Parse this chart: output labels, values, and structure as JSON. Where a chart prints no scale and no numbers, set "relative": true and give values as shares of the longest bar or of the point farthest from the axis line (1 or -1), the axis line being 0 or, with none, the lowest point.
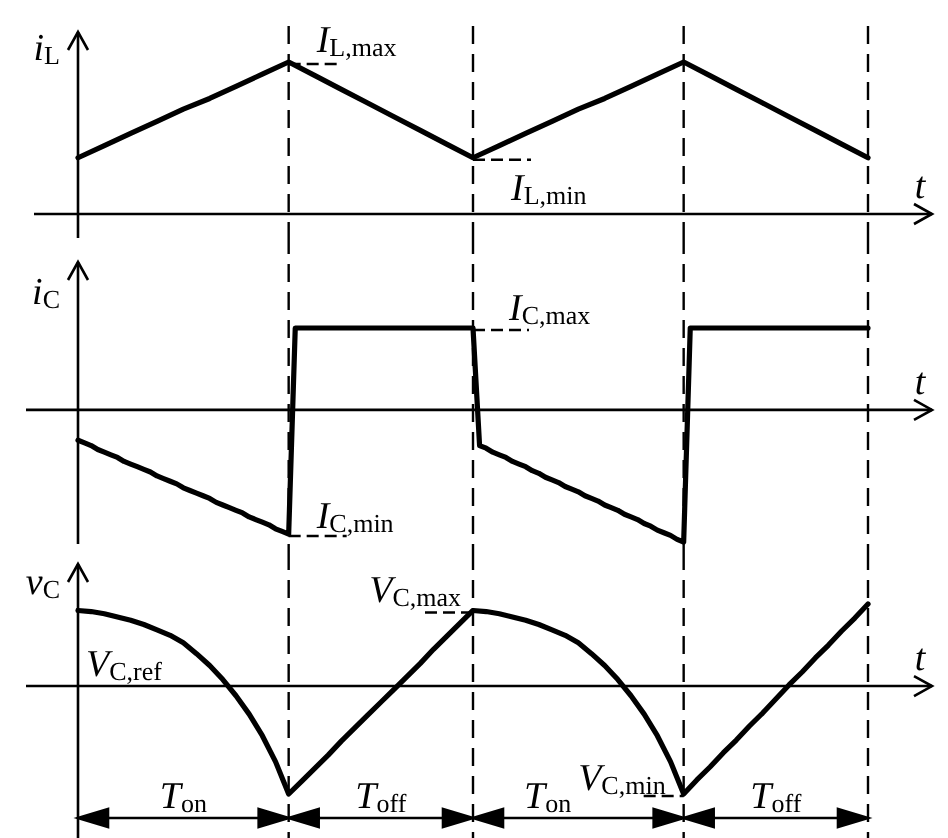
{
  "chart_data": [
    {
      "type": "line",
      "xlabel": "t",
      "ylabel": "i$_{L}$",
      "relative": true,
      "grid": "x",
      "categories": [
        null,
        null,
        null,
        null,
        null,
        null,
        null,
        null,
        null,
        null,
        null,
        null,
        null,
        null,
        null,
        null,
        null,
        null,
        null,
        null,
        null,
        null,
        null,
        null,
        null,
        null,
        null,
        null,
        null,
        null,
        null
      ],
      "series": [
        {
          "color": "#000000",
          "values": [
            0.37,
            0.45,
            0.53,
            0.61,
            0.69,
            0.76,
            0.84,
            0.92,
            1,
            0.91,
            0.82,
            0.73,
            0.64,
            0.55,
            0.46,
            0.37,
            0.45,
            0.53,
            0.61,
            0.69,
            0.76,
            0.84,
            0.92,
            1,
            0.91,
            0.82,
            0.73,
            0.64,
            0.55,
            0.46,
            0.37
          ]
        }
      ],
      "annotations": [
        "I$_{L,max}$",
        "I$_{L,min}$"
      ]
    },
    {
      "type": "line",
      "xlabel": "t",
      "ylabel": "i$_{C}$",
      "relative": true,
      "grid": "x",
      "categories": [
        null,
        null,
        null,
        null,
        null,
        null,
        null,
        null,
        null,
        null,
        null,
        null,
        null,
        null,
        null,
        null,
        null,
        null,
        null,
        null,
        null,
        null,
        null,
        null,
        null,
        null,
        null,
        null,
        null,
        null,
        null,
        null,
        null,
        null,
        null,
        null,
        null,
        null,
        null,
        null,
        null,
        null,
        null,
        null,
        null,
        null,
        null,
        null,
        null,
        null,
        null,
        null,
        null,
        null,
        null,
        null,
        null,
        null,
        null,
        null,
        null,
        null,
        null,
        null,
        null,
        null,
        null,
        null,
        null,
        null,
        null,
        null,
        null,
        null,
        null,
        null,
        null,
        null,
        null,
        null,
        null,
        null,
        null,
        null,
        null,
        null,
        null,
        null,
        null,
        null,
        null,
        null,
        null,
        null,
        null,
        null,
        null,
        null,
        null,
        null,
        null,
        null,
        null,
        null,
        null,
        null,
        null,
        null,
        null,
        null,
        null,
        null,
        null,
        null,
        null,
        null,
        null,
        null,
        null,
        null,
        null
      ],
      "series": [
        {
          "color": "#000000",
          "values": [
            -0.23,
            -0.25,
            -0.27,
            -0.3,
            -0.32,
            -0.34,
            -0.36,
            -0.39,
            -0.41,
            -0.43,
            -0.45,
            -0.47,
            -0.5,
            -0.52,
            -0.54,
            -0.56,
            -0.59,
            -0.61,
            -0.63,
            -0.65,
            -0.67,
            -0.7,
            -0.72,
            -0.74,
            -0.76,
            -0.78,
            -0.81,
            -0.83,
            -0.85,
            -0.87,
            -0.9,
            -0.92,
            -0.94,
            0.62,
            0.62,
            0.62,
            0.62,
            0.62,
            0.62,
            0.62,
            0.62,
            0.62,
            0.62,
            0.62,
            0.62,
            0.62,
            0.62,
            0.62,
            0.62,
            0.62,
            0.62,
            0.62,
            0.62,
            0.62,
            0.62,
            0.62,
            0.62,
            0.62,
            0.62,
            0.62,
            0.62,
            -0.27,
            -0.29,
            -0.32,
            -0.34,
            -0.36,
            -0.39,
            -0.41,
            -0.43,
            -0.46,
            -0.48,
            -0.51,
            -0.53,
            -0.55,
            -0.58,
            -0.6,
            -0.62,
            -0.65,
            -0.67,
            -0.69,
            -0.72,
            -0.74,
            -0.76,
            -0.79,
            -0.81,
            -0.83,
            -0.86,
            -0.88,
            -0.91,
            -0.93,
            -0.95,
            -0.98,
            -1,
            0.62,
            0.62,
            0.62,
            0.62,
            0.62,
            0.62,
            0.62,
            0.62,
            0.62,
            0.62,
            0.62,
            0.62,
            0.62,
            0.62,
            0.62,
            0.62,
            0.62,
            0.62,
            0.62,
            0.62,
            0.62,
            0.62,
            0.62,
            0.62,
            0.62,
            0.62,
            0.62,
            0.62
          ]
        }
      ],
      "annotations": [
        "I$_{C,max}$",
        "I$_{C,min}$"
      ]
    },
    {
      "type": "line",
      "xlabel": "t",
      "ylabel": "v$_{C}$",
      "relative": true,
      "grid": "x",
      "categories": [
        null,
        null,
        null,
        null,
        null,
        null,
        null,
        null,
        null,
        null,
        null,
        null,
        null,
        null,
        null,
        null,
        null,
        null,
        null,
        null,
        null,
        null,
        null,
        null,
        null,
        null,
        null,
        null,
        null,
        null,
        null,
        null,
        null,
        null,
        null,
        null,
        null,
        null,
        null,
        null,
        null,
        null,
        null,
        null,
        null,
        null,
        null,
        null,
        null,
        null,
        null,
        null,
        null,
        null,
        null,
        null,
        null,
        null,
        null,
        null,
        null
      ],
      "series": [
        {
          "color": "#000000",
          "values": [
            0.7,
            0.69,
            0.67,
            0.64,
            0.61,
            0.57,
            0.52,
            0.47,
            0.4,
            0.3,
            0.19,
            0.06,
            -0.09,
            -0.26,
            -0.46,
            -0.7,
            -1,
            -0.88,
            -0.76,
            -0.64,
            -0.51,
            -0.39,
            -0.27,
            -0.15,
            -0.03,
            0.09,
            0.21,
            0.34,
            0.46,
            0.58,
            0.7,
            0.69,
            0.67,
            0.64,
            0.61,
            0.57,
            0.52,
            0.47,
            0.4,
            0.3,
            0.19,
            0.06,
            -0.09,
            -0.26,
            -0.46,
            -0.7,
            -1,
            -0.87,
            -0.75,
            -0.62,
            -0.5,
            -0.37,
            -0.25,
            -0.12,
            0.01,
            0.13,
            0.26,
            0.38,
            0.51,
            0.63,
            0.76
          ]
        }
      ],
      "annotations": [
        "V$_{C,max}$",
        "V$_{C,ref}$",
        "V$_{C,min}$",
        "T$_{on}$",
        "T$_{off}$",
        "T$_{on}$",
        "T$_{off}$"
      ]
    }
  ]
}
